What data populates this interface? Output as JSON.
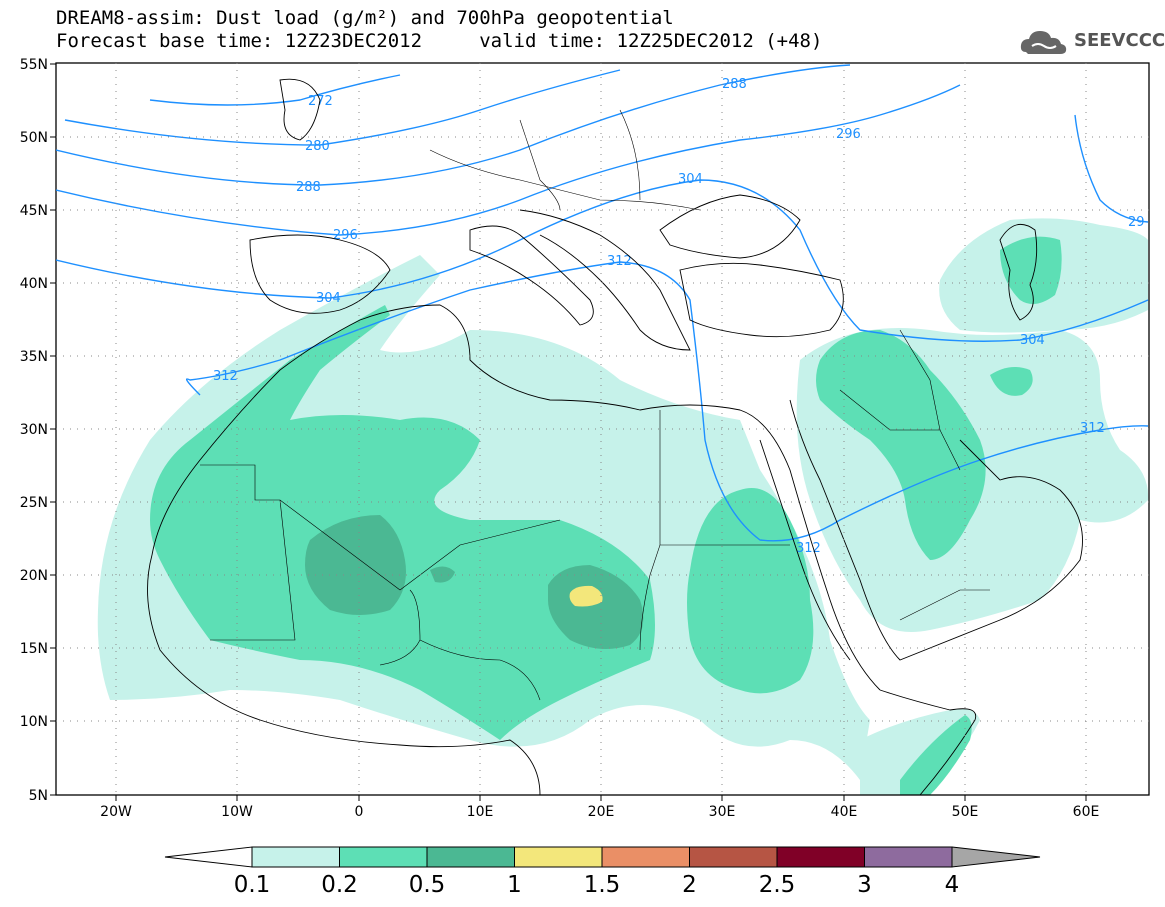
{
  "title_line1": "DREAM8-assim: Dust load (g/m²) and 700hPa geopotential",
  "title_line2": "Forecast base time: 12Z23DEC2012     valid time: 12Z25DEC2012 (+48)",
  "logo_text": "SEEVCCC",
  "colors": {
    "fill_0_1": "#c6f2ea",
    "fill_0_2": "#5ddfb5",
    "fill_0_5": "#4bb893",
    "fill_1": "#f3e77b",
    "fill_1_5": "#ea8f66",
    "fill_2": "#b65544",
    "fill_2_5": "#800027",
    "fill_3": "#8e6b9e",
    "fill_4": "#a6a6a6",
    "contour": "#1e90ff"
  },
  "lat_labels": [
    "55N",
    "50N",
    "45N",
    "40N",
    "35N",
    "30N",
    "25N",
    "20N",
    "15N",
    "10N",
    "5N"
  ],
  "lon_labels": [
    "20W",
    "10W",
    "0",
    "10E",
    "20E",
    "30E",
    "40E",
    "50E",
    "60E"
  ],
  "contour_labels": [
    "272",
    "280",
    "288",
    "296",
    "304",
    "312",
    "288",
    "296",
    "304",
    "312",
    "312",
    "304",
    "312",
    "29"
  ],
  "colorbar_labels": [
    "0.1",
    "0.2",
    "0.5",
    "1",
    "1.5",
    "2",
    "2.5",
    "3",
    "4"
  ]
}
